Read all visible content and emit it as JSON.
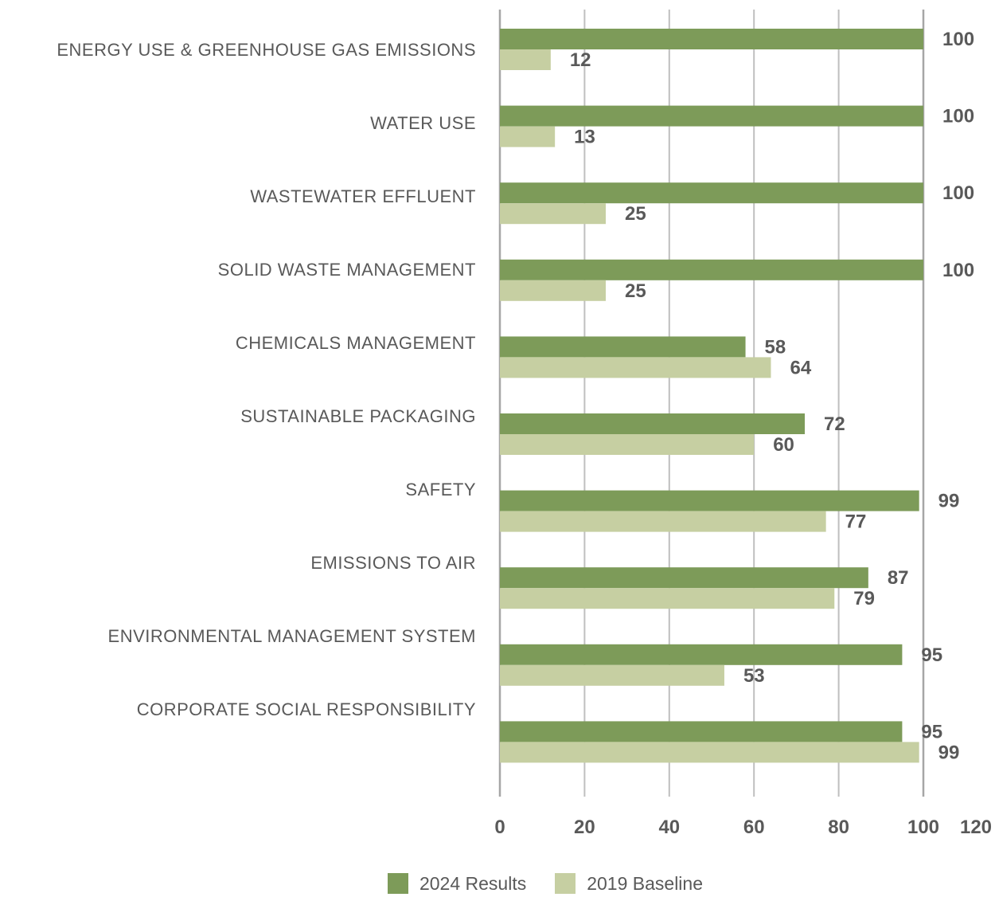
{
  "chart_data": {
    "type": "bar",
    "orientation": "horizontal",
    "categories": [
      "ENERGY USE & GREENHOUSE GAS EMISSIONS",
      "WATER USE",
      "WASTEWATER EFFLUENT",
      "SOLID WASTE MANAGEMENT",
      "CHEMICALS MANAGEMENT",
      "SUSTAINABLE PACKAGING",
      "SAFETY",
      "EMISSIONS TO AIR",
      "ENVIRONMENTAL MANAGEMENT SYSTEM",
      "CORPORATE SOCIAL RESPONSIBILITY"
    ],
    "series": [
      {
        "name": "2024 Results",
        "color": "#7d9b59",
        "values": [
          100,
          100,
          100,
          100,
          58,
          72,
          99,
          87,
          95,
          95
        ]
      },
      {
        "name": "2019 Baseline",
        "color": "#c6cfa2",
        "values": [
          12,
          13,
          25,
          25,
          64,
          60,
          77,
          79,
          53,
          99
        ]
      }
    ],
    "xlim": [
      0,
      120
    ],
    "x_ticks": [
      "0",
      "20",
      "40",
      "60",
      "80",
      "100",
      "120"
    ],
    "grid": true,
    "legend_position": "bottom",
    "title": "",
    "xlabel": "",
    "ylabel": ""
  }
}
